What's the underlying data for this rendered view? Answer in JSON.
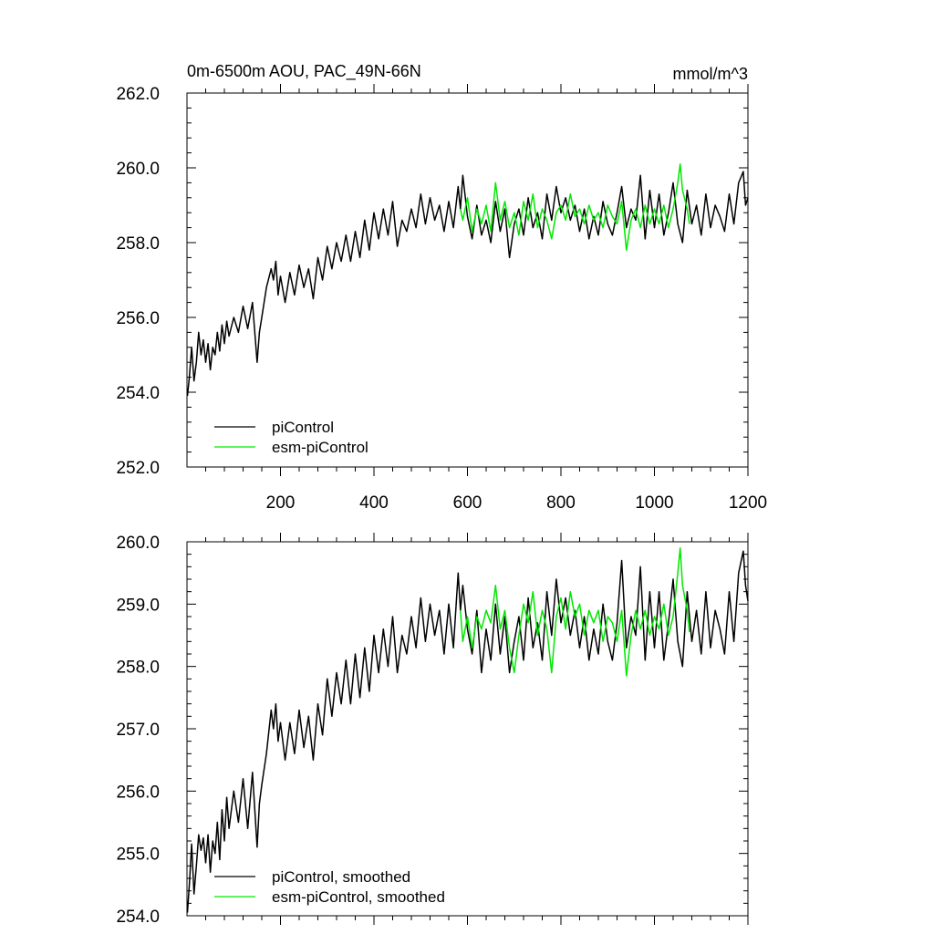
{
  "chart_data": [
    {
      "type": "line",
      "title_left": "0m-6500m AOU, PAC_49N-66N",
      "title_right": "mmol/m^3",
      "xlabel": "",
      "ylabel": "",
      "xlim": [
        0,
        1200
      ],
      "ylim": [
        252,
        262
      ],
      "yticks": [
        252,
        254,
        256,
        258,
        260,
        262
      ],
      "ytick_labels": [
        "252.0",
        "254.0",
        "256.0",
        "258.0",
        "260.0",
        "262.0"
      ],
      "xticks": [
        200,
        400,
        600,
        800,
        1000,
        1200
      ],
      "xtick_labels": [
        "200",
        "400",
        "600",
        "800",
        "1000",
        "1200"
      ],
      "legend_position": "bottom-left",
      "series": [
        {
          "name": "piControl",
          "color": "#000000",
          "x": [
            1,
            5,
            10,
            15,
            20,
            25,
            30,
            35,
            40,
            45,
            50,
            55,
            60,
            65,
            70,
            75,
            80,
            85,
            90,
            100,
            110,
            120,
            130,
            140,
            150,
            155,
            160,
            170,
            180,
            185,
            190,
            195,
            200,
            210,
            220,
            230,
            240,
            250,
            260,
            270,
            280,
            290,
            300,
            310,
            320,
            330,
            340,
            350,
            360,
            370,
            380,
            390,
            400,
            410,
            420,
            430,
            440,
            450,
            460,
            470,
            480,
            490,
            500,
            510,
            520,
            530,
            540,
            550,
            560,
            570,
            580,
            585,
            590,
            600,
            610,
            620,
            630,
            640,
            650,
            660,
            670,
            680,
            690,
            700,
            710,
            720,
            730,
            740,
            750,
            760,
            770,
            780,
            790,
            800,
            810,
            820,
            830,
            840,
            850,
            860,
            870,
            880,
            890,
            900,
            910,
            920,
            930,
            940,
            950,
            960,
            970,
            980,
            990,
            1000,
            1010,
            1020,
            1030,
            1040,
            1050,
            1060,
            1070,
            1080,
            1090,
            1100,
            1110,
            1120,
            1130,
            1140,
            1150,
            1160,
            1170,
            1180,
            1190,
            1195,
            1200
          ],
          "values": [
            253.9,
            254.4,
            255.2,
            254.3,
            254.8,
            255.6,
            255.0,
            255.4,
            254.8,
            255.3,
            254.6,
            255.2,
            255.0,
            255.6,
            255.1,
            255.8,
            255.3,
            255.9,
            255.5,
            256.0,
            255.6,
            256.3,
            255.7,
            256.4,
            254.8,
            255.6,
            256.0,
            256.8,
            257.3,
            257.0,
            257.5,
            256.6,
            257.1,
            256.4,
            257.2,
            256.6,
            257.4,
            256.8,
            257.3,
            256.5,
            257.6,
            257.0,
            257.9,
            257.3,
            258.0,
            257.5,
            258.2,
            257.5,
            258.3,
            257.6,
            258.6,
            257.8,
            258.8,
            258.1,
            258.9,
            258.2,
            259.1,
            257.9,
            258.6,
            258.3,
            258.9,
            258.4,
            259.3,
            258.5,
            259.2,
            258.6,
            259.0,
            258.3,
            259.1,
            258.4,
            259.5,
            258.9,
            259.8,
            258.7,
            258.1,
            259.0,
            258.2,
            258.6,
            258.0,
            259.1,
            258.3,
            258.9,
            257.6,
            258.5,
            258.9,
            258.2,
            259.2,
            258.4,
            258.8,
            258.1,
            259.3,
            258.6,
            259.5,
            258.8,
            259.2,
            258.6,
            259.0,
            258.3,
            258.9,
            258.1,
            258.7,
            258.2,
            259.1,
            258.5,
            258.2,
            258.8,
            259.5,
            258.4,
            258.9,
            258.6,
            259.8,
            258.1,
            259.4,
            258.4,
            259.3,
            258.2,
            258.8,
            259.6,
            258.5,
            258.0,
            259.4,
            258.5,
            259.0,
            258.2,
            259.3,
            258.4,
            259.0,
            258.7,
            258.3,
            259.3,
            258.5,
            259.6,
            259.9,
            259.0,
            259.2
          ]
        },
        {
          "name": "esm-piControl",
          "color": "#00e800",
          "x": [
            585,
            590,
            600,
            610,
            620,
            630,
            640,
            650,
            660,
            670,
            680,
            690,
            700,
            710,
            720,
            730,
            740,
            750,
            760,
            770,
            780,
            790,
            800,
            810,
            820,
            830,
            840,
            850,
            860,
            870,
            880,
            890,
            900,
            910,
            920,
            930,
            940,
            950,
            960,
            970,
            980,
            990,
            1000,
            1010,
            1020,
            1030,
            1040,
            1050,
            1055,
            1060,
            1070,
            1075
          ],
          "values": [
            258.9,
            258.6,
            259.2,
            258.3,
            258.9,
            258.5,
            259.0,
            258.3,
            259.6,
            258.6,
            259.1,
            258.4,
            258.8,
            258.2,
            259.1,
            258.6,
            259.3,
            258.4,
            258.9,
            258.6,
            258.1,
            258.8,
            259.0,
            258.6,
            259.3,
            258.7,
            258.9,
            258.5,
            259.0,
            258.6,
            258.8,
            258.4,
            259.0,
            258.7,
            258.5,
            259.1,
            257.8,
            258.6,
            258.9,
            258.4,
            259.0,
            258.5,
            258.9,
            258.5,
            259.0,
            258.4,
            258.9,
            259.6,
            260.1,
            259.4,
            258.9,
            258.5
          ]
        }
      ]
    },
    {
      "type": "line",
      "xlim": [
        0,
        1200
      ],
      "ylim": [
        254,
        260
      ],
      "yticks": [
        254,
        255,
        256,
        257,
        258,
        259,
        260
      ],
      "ytick_labels": [
        "254.0",
        "255.0",
        "256.0",
        "257.0",
        "258.0",
        "259.0",
        "260.0"
      ],
      "xticks": [
        200,
        400,
        600,
        800,
        1000,
        1200
      ],
      "legend_position": "bottom-left",
      "series": [
        {
          "name": "piControl, smoothed",
          "color": "#000000",
          "x": [
            1,
            5,
            10,
            15,
            20,
            25,
            30,
            35,
            40,
            45,
            50,
            55,
            60,
            65,
            70,
            75,
            80,
            85,
            90,
            100,
            110,
            120,
            130,
            140,
            150,
            155,
            160,
            170,
            180,
            185,
            190,
            195,
            200,
            210,
            220,
            230,
            240,
            250,
            260,
            270,
            280,
            290,
            300,
            310,
            320,
            330,
            340,
            350,
            360,
            370,
            380,
            390,
            400,
            410,
            420,
            430,
            440,
            450,
            460,
            470,
            480,
            490,
            500,
            510,
            520,
            530,
            540,
            550,
            560,
            570,
            580,
            585,
            590,
            600,
            610,
            620,
            630,
            640,
            650,
            660,
            670,
            680,
            690,
            700,
            710,
            720,
            730,
            740,
            750,
            760,
            770,
            780,
            790,
            800,
            810,
            820,
            830,
            840,
            850,
            860,
            870,
            880,
            890,
            900,
            910,
            920,
            930,
            940,
            950,
            960,
            970,
            980,
            990,
            1000,
            1010,
            1020,
            1030,
            1040,
            1050,
            1060,
            1070,
            1080,
            1090,
            1100,
            1110,
            1120,
            1130,
            1140,
            1150,
            1160,
            1170,
            1180,
            1190,
            1195,
            1200
          ],
          "values": [
            254.05,
            254.5,
            255.15,
            254.35,
            254.8,
            255.3,
            255.05,
            255.25,
            254.85,
            255.3,
            254.7,
            255.2,
            255.0,
            255.5,
            254.9,
            255.7,
            255.2,
            255.9,
            255.4,
            256.0,
            255.5,
            256.2,
            255.4,
            256.3,
            255.1,
            255.8,
            256.1,
            256.6,
            257.3,
            257.0,
            257.4,
            256.8,
            257.1,
            256.5,
            257.1,
            256.6,
            257.3,
            256.7,
            257.2,
            256.5,
            257.4,
            256.9,
            257.8,
            257.2,
            257.9,
            257.4,
            258.1,
            257.4,
            258.2,
            257.5,
            258.3,
            257.6,
            258.5,
            257.9,
            258.6,
            258.0,
            258.8,
            257.9,
            258.5,
            258.2,
            258.8,
            258.3,
            259.1,
            258.4,
            259.0,
            258.5,
            258.9,
            258.2,
            259.0,
            258.3,
            259.5,
            258.9,
            259.3,
            258.6,
            258.2,
            258.9,
            257.9,
            258.6,
            258.1,
            259.0,
            258.2,
            258.8,
            257.9,
            258.4,
            258.8,
            258.1,
            259.1,
            258.3,
            258.7,
            258.1,
            259.2,
            258.5,
            259.4,
            258.7,
            259.1,
            258.5,
            258.9,
            258.3,
            258.8,
            258.1,
            258.6,
            258.2,
            259.0,
            258.4,
            258.1,
            258.7,
            259.7,
            258.3,
            258.8,
            258.5,
            259.6,
            258.1,
            259.2,
            258.3,
            259.2,
            258.1,
            258.7,
            259.4,
            258.4,
            258.0,
            259.2,
            258.4,
            258.9,
            258.2,
            259.2,
            258.3,
            258.9,
            258.6,
            258.2,
            259.2,
            258.4,
            259.5,
            259.85,
            259.3,
            259.05
          ]
        },
        {
          "name": "esm-piControl, smoothed",
          "color": "#00e800",
          "x": [
            585,
            590,
            600,
            610,
            620,
            630,
            640,
            650,
            660,
            670,
            680,
            690,
            700,
            710,
            720,
            730,
            740,
            750,
            760,
            770,
            780,
            790,
            800,
            810,
            820,
            830,
            840,
            850,
            860,
            870,
            880,
            890,
            900,
            910,
            920,
            930,
            940,
            950,
            960,
            970,
            980,
            990,
            1000,
            1010,
            1020,
            1030,
            1040,
            1050,
            1055,
            1060,
            1070,
            1075
          ],
          "values": [
            258.9,
            258.4,
            258.8,
            258.3,
            258.8,
            258.6,
            258.9,
            258.7,
            259.3,
            258.6,
            258.9,
            258.3,
            257.9,
            258.5,
            259.0,
            258.7,
            259.2,
            258.5,
            258.9,
            258.6,
            257.9,
            258.8,
            259.1,
            258.6,
            259.2,
            258.8,
            259.0,
            258.5,
            258.9,
            258.7,
            258.9,
            258.4,
            258.8,
            258.7,
            258.4,
            258.9,
            257.85,
            258.5,
            258.9,
            258.6,
            258.9,
            258.5,
            258.8,
            258.6,
            259.0,
            258.5,
            258.8,
            259.5,
            259.9,
            259.3,
            258.9,
            258.55
          ]
        }
      ]
    }
  ]
}
